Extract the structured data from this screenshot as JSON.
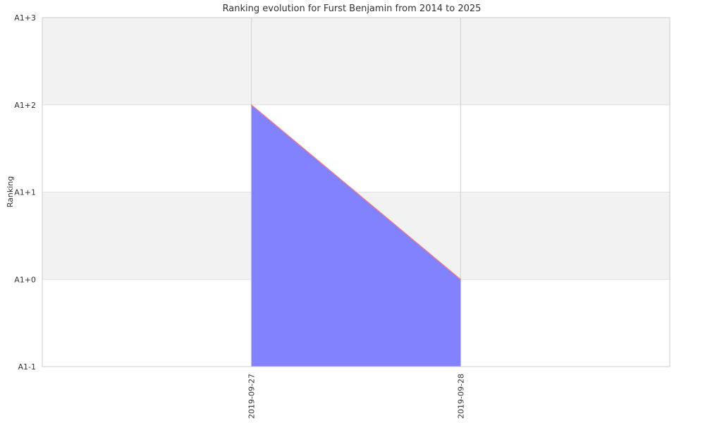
{
  "chart_data": {
    "type": "area",
    "title": "Ranking evolution for Furst Benjamin from 2014 to 2025",
    "xlabel": "",
    "ylabel": "Ranking",
    "x": [
      "2019-09-27",
      "2019-09-28"
    ],
    "y_categories": [
      "A1-1",
      "A1+0",
      "A1+1",
      "A1+2",
      "A1+3"
    ],
    "series": [
      {
        "values": [
          "A1+2",
          "A1+0"
        ],
        "fill_color": "#7f7fff",
        "line_color": "#ff7f7f"
      }
    ],
    "xlim": [
      "2019-09-26",
      "2019-09-29"
    ],
    "grid": true,
    "band_color": "#f2f2f2"
  }
}
